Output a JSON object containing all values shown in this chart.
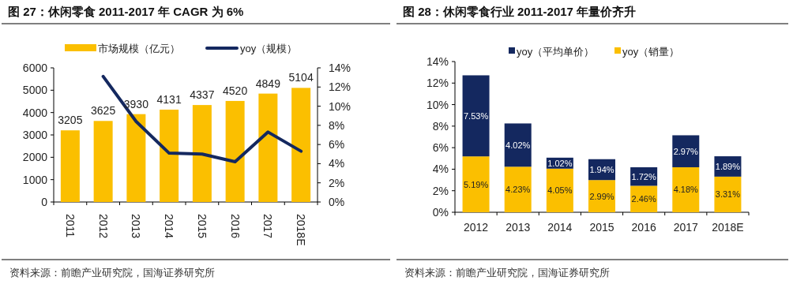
{
  "chart_data": [
    {
      "type": "bar",
      "title": "图 27：休闲零食 2011-2017 年 CAGR 为 6%",
      "categories": [
        "2011",
        "2012",
        "2013",
        "2014",
        "2015",
        "2016",
        "2017",
        "2018E"
      ],
      "series": [
        {
          "name": "市场规模（亿元）",
          "type": "bar",
          "color": "#fbbf00",
          "values": [
            3205,
            3625,
            3930,
            4131,
            4337,
            4520,
            4849,
            5104
          ],
          "value_labels": [
            "3205",
            "3625",
            "3930",
            "4131",
            "4337",
            "4520",
            "4849",
            "5104"
          ]
        },
        {
          "name": "yoy（规模）",
          "type": "line",
          "axis": "y2",
          "color": "#14285f",
          "values": [
            null,
            13.1,
            8.4,
            5.1,
            5.0,
            4.2,
            7.3,
            5.3
          ]
        }
      ],
      "ylim": [
        0,
        6000
      ],
      "yticks": [
        0,
        1000,
        2000,
        3000,
        4000,
        5000,
        6000
      ],
      "y2lim": [
        0,
        14
      ],
      "y2ticks": [
        {
          "value": 0,
          "label": "0%"
        },
        {
          "value": 2,
          "label": "2%"
        },
        {
          "value": 4,
          "label": "4%"
        },
        {
          "value": 6,
          "label": "6%"
        },
        {
          "value": 8,
          "label": "8%"
        },
        {
          "value": 10,
          "label": "10%"
        },
        {
          "value": 12,
          "label": "12%"
        },
        {
          "value": 14,
          "label": "14%"
        }
      ],
      "legend": "top",
      "grid": false,
      "annotations": [
        "资料来源：前瞻产业研究院，国海证券研究所"
      ]
    },
    {
      "type": "bar",
      "title": "图 28：休闲零食行业 2011-2017 年量价齐升",
      "categories": [
        "2012",
        "2013",
        "2014",
        "2015",
        "2016",
        "2017",
        "2018E"
      ],
      "stacked": true,
      "series": [
        {
          "name": "yoy（销量）",
          "color": "#fbbf00",
          "values": [
            5.19,
            4.23,
            4.05,
            2.99,
            2.46,
            4.18,
            3.31
          ],
          "value_labels": [
            "5.19%",
            "4.23%",
            "4.05%",
            "2.99%",
            "2.46%",
            "4.18%",
            "3.31%"
          ]
        },
        {
          "name": "yoy（平均单价）",
          "color": "#14285f",
          "values": [
            7.53,
            4.02,
            1.02,
            1.94,
            1.72,
            2.97,
            1.89
          ],
          "value_labels": [
            "7.53%",
            "4.02%",
            "1.02%",
            "1.94%",
            "1.72%",
            "2.97%",
            "1.89%"
          ]
        }
      ],
      "ylim": [
        0,
        14
      ],
      "yticks": [
        {
          "value": 0,
          "label": "0%"
        },
        {
          "value": 2,
          "label": "2%"
        },
        {
          "value": 4,
          "label": "4%"
        },
        {
          "value": 6,
          "label": "6%"
        },
        {
          "value": 8,
          "label": "8%"
        },
        {
          "value": 10,
          "label": "10%"
        },
        {
          "value": 12,
          "label": "12%"
        },
        {
          "value": 14,
          "label": "14%"
        }
      ],
      "legend": "top",
      "grid": false,
      "annotations": [
        "资料来源：前瞻产业研究院，国海证券研究所"
      ]
    }
  ]
}
